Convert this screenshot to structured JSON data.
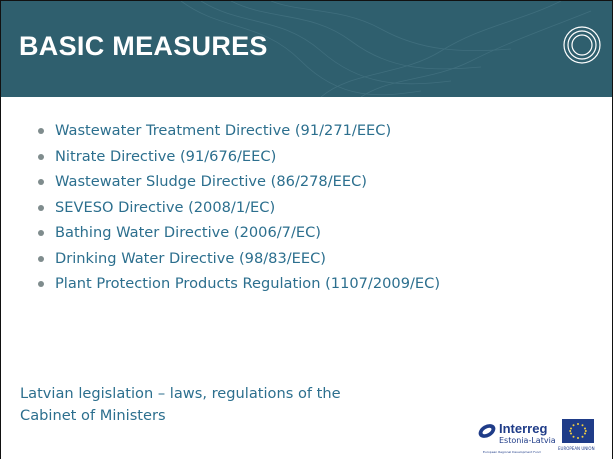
{
  "header": {
    "title": "BASIC MEASURES"
  },
  "bullets": [
    "Wastewater Treatment Directive (91/271/EEC)",
    "Nitrate Directive (91/676/EEC)",
    "Wastewater Sludge Directive (86/278/EEC)",
    "SEVESO Directive (2008/1/EC)",
    "Bathing Water Directive (2006/7/EC)",
    "Drinking Water Directive (98/83/EEC)",
    "Plant Protection Products Regulation (1107/2009/EC)"
  ],
  "note": "Latvian legislation – laws, regulations of the Cabinet of Ministers",
  "logos": {
    "interreg": {
      "brand": "Interreg",
      "programme": "Estonia-Latvia",
      "fund": "European Regional Development Fund"
    },
    "eu": "EUROPEAN UNION"
  }
}
